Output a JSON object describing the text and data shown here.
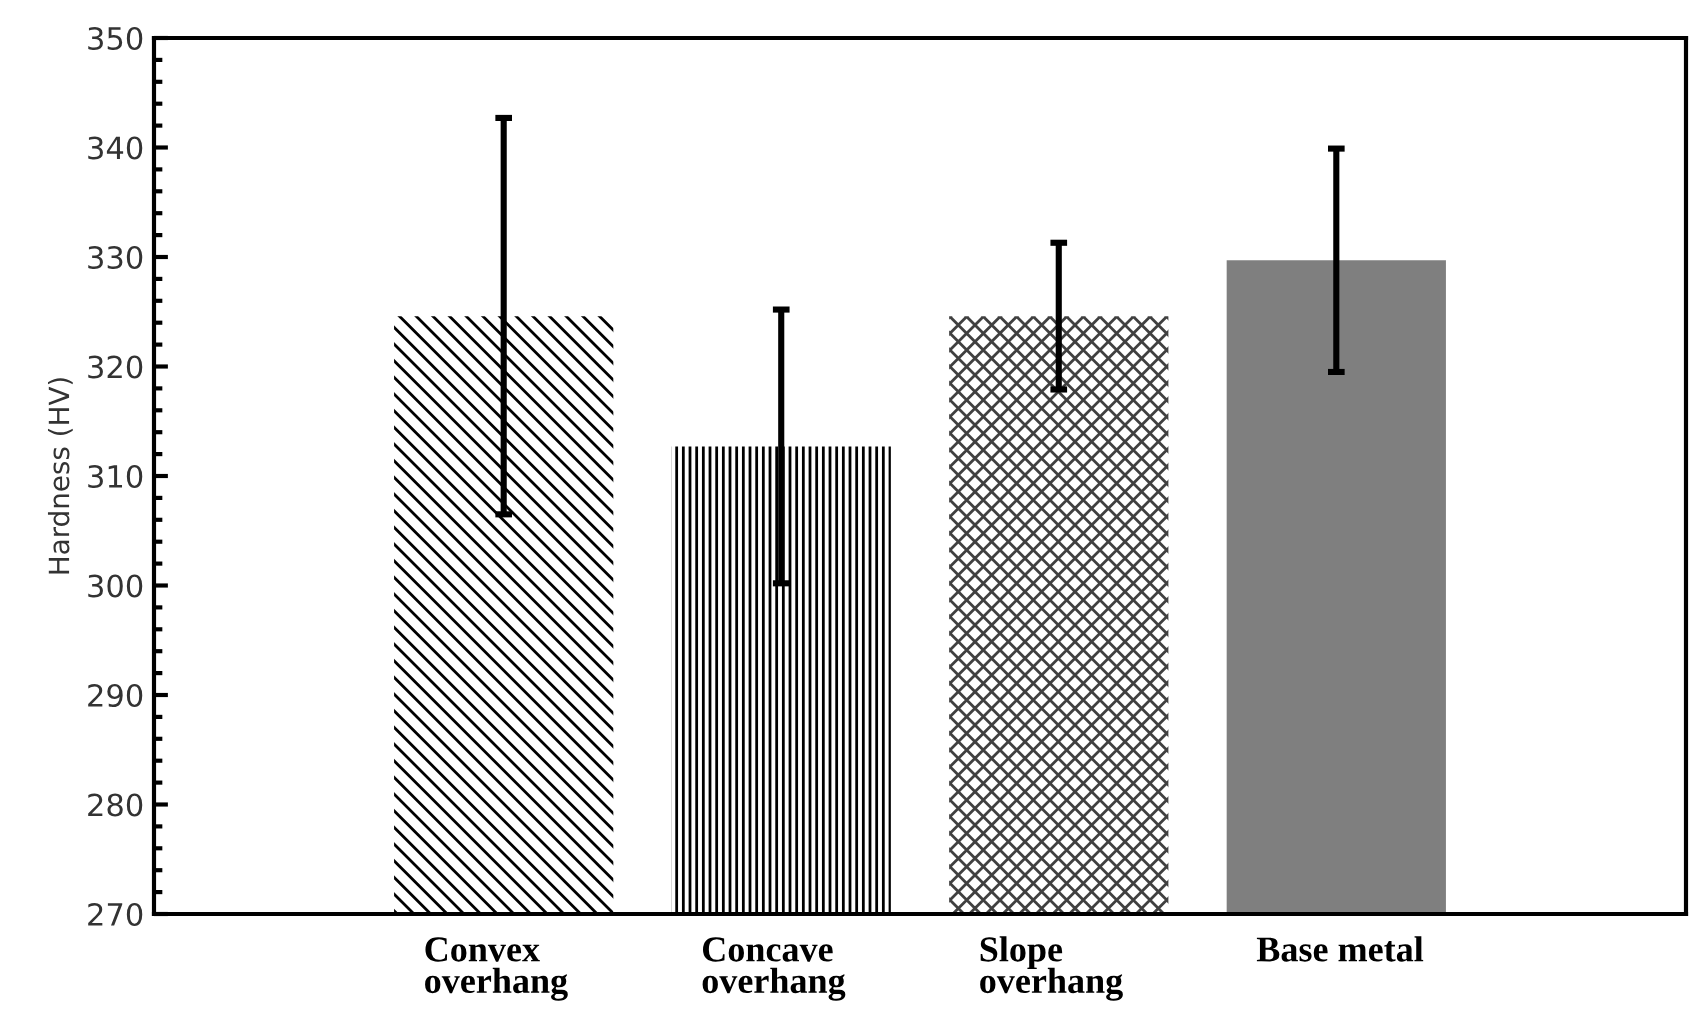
{
  "chart_data": {
    "type": "bar",
    "ylabel": "Hardness (HV)",
    "categories": [
      "Convex\noverhang",
      "Concave\noverhang",
      "Slope\noverhang",
      "Base metal"
    ],
    "values": [
      324.6,
      312.7,
      324.6,
      329.7
    ],
    "errors": [
      18.1,
      12.5,
      6.7,
      10.2
    ],
    "colors": [
      "#000000",
      "#000000",
      "#404040",
      "#7f7f7f"
    ],
    "ylim": [
      270,
      350
    ],
    "yticks": [
      270,
      280,
      290,
      300,
      310,
      320,
      330,
      340,
      350
    ],
    "grid": false,
    "legend": false
  }
}
